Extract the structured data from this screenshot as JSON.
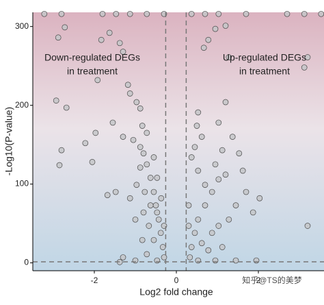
{
  "chart_data": {
    "type": "scatter",
    "xlabel": "Log2 fold change",
    "ylabel": "-Log10(P-value)",
    "annotations": [
      {
        "lines": [
          "Down-regulated DEGs",
          "in treatment"
        ],
        "x": -2.05,
        "y": 260
      },
      {
        "lines": [
          "Up-regulated DEGs",
          "in treatment"
        ],
        "x": 2.15,
        "y": 260
      }
    ],
    "watermark": "知乎@TS的美梦",
    "xlim": [
      -3.5,
      3.6
    ],
    "ylim": [
      -10,
      318
    ],
    "xticks": [
      -2,
      0,
      2
    ],
    "yticks": [
      0,
      100,
      200,
      300
    ],
    "vlines": [
      -0.26,
      0.24
    ],
    "hline": 1.3,
    "color": "#c4c6c8",
    "edgecolor": "#4a4a4a",
    "x": [
      -2.88,
      -2.72,
      -1.63,
      -1.83,
      -1.38,
      -1.3,
      -2.93,
      -2.68,
      -1.92,
      -1.18,
      -1.13,
      -0.97,
      -0.88,
      -2.22,
      -2.8,
      -2.05,
      -2.85,
      -1.68,
      -1.48,
      -1.97,
      -1.55,
      -1.3,
      -1.05,
      -0.88,
      -0.8,
      -0.72,
      -0.63,
      -0.55,
      -0.5,
      -0.43,
      -0.38,
      -0.33,
      -0.3,
      -0.55,
      -0.67,
      -0.8,
      -0.97,
      -1.13,
      -1.0,
      -0.83,
      -0.72,
      -0.47,
      -0.63,
      -0.77,
      -0.88,
      -0.47,
      -0.37,
      -0.55,
      -0.72,
      -0.83,
      -0.47,
      -0.3,
      -1.0,
      -1.3,
      -1.38,
      -3.22,
      -2.8,
      -1.8,
      -1.47,
      -1.13,
      -0.72,
      -0.3,
      0.78,
      0.67,
      0.95,
      1.2,
      1.28,
      3.2,
      3.12,
      1.2,
      1.03,
      1.37,
      0.53,
      0.5,
      0.62,
      0.45,
      1.12,
      0.95,
      1.2,
      1.03,
      1.53,
      1.7,
      1.45,
      1.28,
      1.62,
      0.87,
      0.7,
      0.53,
      0.45,
      0.37,
      0.33,
      0.62,
      0.87,
      1.12,
      1.45,
      0.7,
      0.53,
      0.37,
      0.3,
      0.3,
      1.03,
      0.78,
      1.95,
      3.2,
      0.53,
      0.95,
      2.03,
      1.87,
      0.37,
      0.7,
      1.03,
      1.7,
      2.7,
      3.12,
      3.53
    ],
    "y": [
      286,
      299,
      292,
      283,
      279,
      268,
      206,
      197,
      232,
      226,
      215,
      204,
      196,
      152,
      143,
      128,
      124,
      86,
      90,
      165,
      178,
      160,
      156,
      147,
      139,
      125,
      108,
      90,
      73,
      55,
      38,
      20,
      7,
      29,
      47,
      64,
      99,
      82,
      55,
      29,
      11,
      3,
      73,
      90,
      121,
      108,
      82,
      134,
      165,
      174,
      64,
      47,
      3,
      7,
      1,
      316,
      316,
      316,
      316,
      316,
      316,
      316,
      283,
      273,
      297,
      301,
      261,
      261,
      248,
      204,
      178,
      160,
      191,
      174,
      160,
      147,
      143,
      125,
      112,
      106,
      139,
      90,
      73,
      55,
      117,
      90,
      73,
      55,
      38,
      20,
      7,
      25,
      38,
      20,
      3,
      99,
      117,
      134,
      73,
      47,
      47,
      16,
      3,
      47,
      3,
      3,
      82,
      64,
      316,
      316,
      316,
      316,
      316,
      316,
      316
    ]
  }
}
